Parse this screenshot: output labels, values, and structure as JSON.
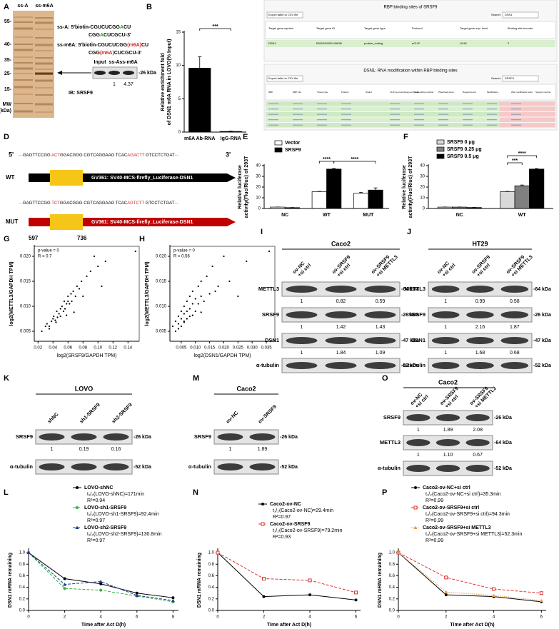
{
  "panel_labels": [
    "A",
    "B",
    "C",
    "D",
    "E",
    "F",
    "G",
    "H",
    "I",
    "J",
    "K",
    "L",
    "M",
    "N",
    "O",
    "P"
  ],
  "panel_a": {
    "lanes": [
      "ss-A",
      "ss-m6A"
    ],
    "mw": [
      "55-",
      "40-",
      "35-",
      "25-",
      "15-"
    ],
    "mw_title": "MW",
    "mw_unit": "(kDa)",
    "probes": [
      [
        [
          "ss-A: 5'biotin-CGUCUCGG",
          "A",
          "CU"
        ],
        [
          "CGG",
          "A",
          "CUCGCU-3'"
        ]
      ],
      [
        [
          "ss-m6A: 5'biotin-CGUCUCGG",
          "(m6A)",
          "CU"
        ],
        [
          "CGG",
          "(m6A)",
          "CUCGCU-3'"
        ]
      ]
    ],
    "blot": {
      "lanes": [
        "Input",
        "ss-A",
        "ss-m6A"
      ],
      "mw": "-26 kDa",
      "quant": [
        "1",
        "4.37"
      ],
      "antibody": "IB: SRSF9"
    }
  },
  "panel_c": {
    "title1": "RBP binding sites of SRSF9",
    "export": "Export table to CSV file",
    "search": "Search:",
    "query1": "DSN1",
    "headers1": [
      "Target gene symbol",
      "Target gene ID",
      "Target gene type",
      "Protocol",
      "Target gene exp. level",
      "Binding site records"
    ],
    "row1": [
      "DSN1",
      "ENSG00000149636",
      "protein_coding",
      "eCLIP",
      "LN18",
      "2"
    ],
    "title2": "DSN1: RNA modification within RBP binding sites",
    "query2": "SRSF9",
    "headers2": [
      "RBP",
      "RBP Info",
      "Tissue type",
      "Position",
      "Strand",
      "CLIP-seq technology and peak calling method",
      "Score",
      "Pheatmap score",
      "Repeat (level)",
      "Modification",
      "Web modification sites",
      "Support number"
    ]
  },
  "panel_d": {
    "prime5": "5'",
    "prime3": "3'",
    "wt_label": "WT",
    "mut_label": "MUT",
    "wt_seq": [
      "···GAGTTCCGG ",
      "ACT",
      "GGACGGG CGTCAGGAAG TCAC",
      "AGACTT",
      " GTCCTCTGAT···"
    ],
    "mut_seq": [
      "···GAGTTCCGG ",
      "TCT",
      "GGACGGG CGTCAGGAAG TCAC",
      "AGTCTT",
      " GTCCTCTGAT···"
    ],
    "construct_wt": "GV361:  SV40-MCS-firefly_Luciferase-DSN1",
    "construct_mut": "GV361:  SV40-MCS-firefly_Luciferase-DSN1",
    "positions": [
      "597",
      "736"
    ]
  },
  "blots": [
    {
      "title": "Caco2",
      "lanes": [
        [
          "ov-NC",
          "+si ctrl"
        ],
        [
          "ov-SRSF9",
          "+si ctrl"
        ],
        [
          "ov-SRSF9",
          "+si METTL3"
        ]
      ],
      "rows": [
        {
          "name": "METTL3",
          "mw": "-64 kDa",
          "quant": [
            "1",
            "0.82",
            "0.59"
          ]
        },
        {
          "name": "SRSF9",
          "mw": "-26 kDa",
          "quant": [
            "1",
            "1.42",
            "1.43"
          ]
        },
        {
          "name": "DSN1",
          "mw": "-47 kDa",
          "quant": [
            "1",
            "1.84",
            "1.09"
          ]
        },
        {
          "name": "α-tubulin",
          "mw": "-52 kDa"
        }
      ]
    },
    {
      "title": "HT29",
      "lanes": [
        [
          "ov-NC",
          "+si ctrl"
        ],
        [
          "ov-SRSF9",
          "+si ctrl"
        ],
        [
          "ov-SRSF9",
          "+si METTL3"
        ]
      ],
      "rows": [
        {
          "name": "METTL3",
          "mw": "-64 kDa",
          "quant": [
            "1",
            "0.99",
            "0.58"
          ]
        },
        {
          "name": "SRSF9",
          "mw": "-26 kDa",
          "quant": [
            "1",
            "2.16",
            "1.87"
          ]
        },
        {
          "name": "DSN1",
          "mw": "-47 kDa",
          "quant": [
            "1",
            "1.68",
            "0.68"
          ]
        },
        {
          "name": "α-tubulin",
          "mw": "-52 kDa"
        }
      ]
    },
    {
      "title": "LOVO",
      "lanes": [
        [
          "shNC"
        ],
        [
          "sh1-SRSF9"
        ],
        [
          "sh2-SRSF9"
        ]
      ],
      "rows": [
        {
          "name": "SRSF9",
          "mw": "-26 kDa",
          "quant": [
            "1",
            "0.19",
            "0.16"
          ]
        },
        {
          "name": "α-tubulin",
          "mw": "-52 kDa"
        }
      ]
    },
    {
      "title": "Caco2",
      "lanes": [
        [
          "ov-NC"
        ],
        [
          "ov-SRSF9"
        ]
      ],
      "rows": [
        {
          "name": "SRSF9",
          "mw": "-26 kDa",
          "quant": [
            "1",
            "1.89"
          ]
        },
        {
          "name": "α-tubulin",
          "mw": "-52 kDa"
        }
      ]
    },
    {
      "title": "Caco2",
      "lanes": [
        [
          "ov-NC",
          "+si ctrl"
        ],
        [
          "ov-SRSF9",
          "+si ctrl"
        ],
        [
          "ov-SRSF9",
          "+si METTL3"
        ]
      ],
      "rows": [
        {
          "name": "SRSF9",
          "mw": "-26 kDa",
          "quant": [
            "1",
            "1.89",
            "2.08"
          ]
        },
        {
          "name": "METTL3",
          "mw": "-64 kDa",
          "quant": [
            "1",
            "1.10",
            "0.67"
          ]
        },
        {
          "name": "α-tubulin",
          "mw": "-52 kDa"
        }
      ]
    }
  ],
  "chart_data": [
    {
      "type": "bar",
      "ylabel": [
        "Relative enrichment fold",
        "of DSN1 m6A RNA in LOVO(% Input)"
      ],
      "categories": [
        "m6A Ab-RNA",
        "IgG-RNA"
      ],
      "values": [
        9.6,
        0.1
      ],
      "errors": [
        1.7,
        0.05
      ],
      "color": "#000000",
      "ylim": [
        0,
        15
      ],
      "yticks": [
        0,
        5,
        10,
        15
      ],
      "annotations": [
        "***"
      ]
    },
    {
      "type": "bar",
      "ylabel": [
        "Relative luciferase",
        "activity(Fluc/Rluc) of 293T"
      ],
      "categories": [
        "NC",
        "WT",
        "MUT"
      ],
      "series": [
        {
          "name": "Vector",
          "color": "#ffffff",
          "values": [
            1.3,
            15.7,
            14.2
          ],
          "errors": [
            0.1,
            0.3,
            0.8
          ]
        },
        {
          "name": "SRSF9",
          "color": "#000000",
          "values": [
            0.8,
            36.8,
            17.2
          ],
          "errors": [
            0.1,
            0.5,
            2.0
          ]
        }
      ],
      "ylim": [
        0,
        40
      ],
      "yticks": [
        0,
        10,
        20,
        30,
        40
      ],
      "annotations": [
        "****",
        "****"
      ]
    },
    {
      "type": "bar",
      "ylabel": [
        "Relative luciferase",
        "activity(Fluc/Rluc) of 293T"
      ],
      "categories": [
        "NC",
        "WT"
      ],
      "series": [
        {
          "name": "SRSF9 0 μg",
          "color": "#d9d9d9",
          "values": [
            1.3,
            15.7
          ],
          "errors": [
            0.1,
            0.3
          ]
        },
        {
          "name": "SRSF9 0.25 μg",
          "color": "#808080",
          "values": [
            1.3,
            21.2
          ],
          "errors": [
            0.1,
            0.7
          ]
        },
        {
          "name": "SRSF9 0.5 μg",
          "color": "#000000",
          "values": [
            0.9,
            36.8
          ],
          "errors": [
            0.1,
            0.4
          ]
        }
      ],
      "ylim": [
        0,
        40
      ],
      "yticks": [
        0,
        10,
        20,
        30,
        40
      ],
      "annotations": [
        "***",
        "****"
      ]
    },
    {
      "type": "scatter",
      "xlabel": "log2(SRSF9/GAPDH TPM)",
      "ylabel": "log2(METTL3/GAPDH TPM)",
      "annotations": [
        "p-value = 0",
        "R = 0.7"
      ],
      "x": [
        0.025,
        0.03,
        0.032,
        0.035,
        0.038,
        0.04,
        0.041,
        0.043,
        0.045,
        0.046,
        0.048,
        0.05,
        0.05,
        0.052,
        0.054,
        0.055,
        0.056,
        0.058,
        0.06,
        0.06,
        0.062,
        0.064,
        0.065,
        0.067,
        0.07,
        0.072,
        0.075,
        0.078,
        0.08,
        0.085,
        0.09,
        0.095,
        0.1,
        0.105,
        0.11,
        0.035,
        0.044,
        0.058,
        0.068,
        0.15
      ],
      "values": [
        0.005,
        0.006,
        0.0065,
        0.006,
        0.007,
        0.0075,
        0.008,
        0.0072,
        0.009,
        0.0078,
        0.0085,
        0.0095,
        0.008,
        0.01,
        0.009,
        0.011,
        0.0095,
        0.0105,
        0.011,
        0.012,
        0.0105,
        0.0125,
        0.011,
        0.013,
        0.012,
        0.014,
        0.0135,
        0.015,
        0.012,
        0.016,
        0.017,
        0.02,
        0.018,
        0.014,
        0.019,
        0.0055,
        0.0068,
        0.0082,
        0.0088,
        0.021
      ],
      "color": "#000000",
      "xlim": [
        0.015,
        0.155
      ],
      "xticks": [
        0.02,
        0.04,
        0.06,
        0.08,
        {
          "value": 0.1,
          "label": "0.10"
        },
        0.12,
        0.14
      ],
      "ylim": [
        0.003,
        0.022
      ],
      "yticks": [
        0.005,
        {
          "value": 0.01,
          "label": "0.010"
        },
        0.015,
        {
          "value": 0.02,
          "label": "0.020"
        }
      ]
    },
    {
      "type": "scatter",
      "xlabel": "log2(DSN1/GAPDH TPM)",
      "ylabel": "log2(METTL3/GAPDH TPM)",
      "annotations": [
        "p-value = 0",
        "R = 0.56"
      ],
      "x": [
        0.002,
        0.003,
        0.003,
        0.004,
        0.004,
        0.005,
        0.005,
        0.005,
        0.006,
        0.006,
        0.006,
        0.007,
        0.007,
        0.007,
        0.008,
        0.008,
        0.008,
        0.009,
        0.009,
        0.01,
        0.01,
        0.011,
        0.011,
        0.012,
        0.012,
        0.013,
        0.014,
        0.015,
        0.016,
        0.017,
        0.018,
        0.02,
        0.022,
        0.025,
        0.028,
        0.004,
        0.006,
        0.009,
        0.012,
        0.036
      ],
      "values": [
        0.006,
        0.005,
        0.007,
        0.0065,
        0.008,
        0.0075,
        0.009,
        0.006,
        0.0085,
        0.01,
        0.007,
        0.011,
        0.009,
        0.0075,
        0.012,
        0.0095,
        0.008,
        0.0105,
        0.013,
        0.0115,
        0.009,
        0.014,
        0.0105,
        0.012,
        0.015,
        0.011,
        0.016,
        0.0125,
        0.018,
        0.013,
        0.014,
        0.02,
        0.015,
        0.012,
        0.019,
        0.0055,
        0.0068,
        0.0082,
        0.0088,
        0.021
      ],
      "color": "#000000",
      "xlim": [
        0.001,
        0.038
      ],
      "xticks": [
        0.005,
        {
          "value": 0.01,
          "label": "0.010"
        },
        0.015,
        {
          "value": 0.02,
          "label": "0.020"
        },
        0.025,
        {
          "value": 0.03,
          "label": "0.030"
        },
        0.035
      ],
      "ylim": [
        0.003,
        0.022
      ],
      "yticks": [
        0.005,
        {
          "value": 0.01,
          "label": "0.010"
        },
        0.015,
        {
          "value": 0.02,
          "label": "0.020"
        }
      ]
    },
    {
      "type": "line",
      "xlabel": "Time after Act D(h)",
      "ylabel": "DSN1 mRNA remaining",
      "x": [
        0,
        2,
        4,
        6,
        8
      ],
      "series": [
        {
          "name": "LOVO-shNC",
          "color": "#000000",
          "dash": "solid",
          "marker": "circle",
          "values": [
            1.0,
            0.55,
            0.46,
            0.3,
            0.22
          ],
          "stats": [
            "t₁/₂(LOVO-shNC)=171min",
            "R²=0.94"
          ]
        },
        {
          "name": "LOVO-sh1-SRSF9",
          "color": "#3cb043",
          "dash": "dash",
          "marker": "circle",
          "values": [
            1.0,
            0.38,
            0.35,
            0.25,
            0.15
          ],
          "stats": [
            "t₁/₂(LOVO-sh1-SRSF9)=92.4min",
            "R²=0.97"
          ]
        },
        {
          "name": "LOVO-sh2-SRSF9",
          "color": "#1f3a93",
          "dash": "dash",
          "marker": "triangle",
          "values": [
            1.0,
            0.45,
            0.5,
            0.26,
            0.17
          ],
          "stats": [
            "t₁/₂(LOVO-sh2-SRSF9)=130.8min",
            "R²=0.97"
          ]
        }
      ],
      "xlim": [
        0,
        8.3
      ],
      "xticks": [
        0,
        2,
        4,
        6,
        8
      ],
      "ylim": [
        0,
        1.05
      ],
      "yticks": [
        {
          "value": 0,
          "label": "0.0"
        },
        0.2,
        0.4,
        0.6,
        0.8,
        {
          "value": 1,
          "label": "1.0"
        }
      ]
    },
    {
      "type": "line",
      "xlabel": "Time after Act D(h)",
      "ylabel": "DSN1 mRNA remaining",
      "x": [
        0,
        2,
        4,
        6
      ],
      "series": [
        {
          "name": "Caco2-ov-NC",
          "color": "#000000",
          "dash": "solid",
          "marker": "circle",
          "values": [
            1.0,
            0.24,
            0.27,
            0.18
          ],
          "stats": [
            "t₁/₂(Caco2-ov-NC)=29.4min",
            "R²=0.97"
          ]
        },
        {
          "name": "Caco2-ov-SRSF9",
          "color": "#e03030",
          "dash": "dash",
          "marker": "square-open",
          "values": [
            1.0,
            0.55,
            0.52,
            0.31
          ],
          "stats": [
            "t₁/₂(Caco2-ov-SRSF9)=79.2min",
            "R²=0.93"
          ]
        }
      ],
      "xlim": [
        0,
        6.2
      ],
      "xticks": [
        0,
        2,
        4,
        6
      ],
      "ylim": [
        0,
        1.05
      ],
      "yticks": [
        {
          "value": 0,
          "label": "0.0"
        },
        0.2,
        0.4,
        0.6,
        0.8,
        {
          "value": 1,
          "label": "1.0"
        }
      ]
    },
    {
      "type": "line",
      "xlabel": "Time after Act D(h)",
      "ylabel": "DSN1 mRNA remaining",
      "x": [
        0,
        2,
        4,
        6
      ],
      "series": [
        {
          "name": "Caco2-ov-NC+si ctrl",
          "color": "#000000",
          "dash": "solid",
          "marker": "circle",
          "values": [
            1.0,
            0.27,
            0.24,
            0.15
          ],
          "stats": [
            "t₁/₂(Caco2-ov-NC+si ctrl)=35.3min",
            "R²=0.99"
          ]
        },
        {
          "name": "Caco2-ov-SRSF9+si ctrl",
          "color": "#e03030",
          "dash": "dash",
          "marker": "square-open",
          "values": [
            1.0,
            0.57,
            0.37,
            0.3
          ],
          "stats": [
            "t₁/₂(Caco2-ov-SRSF9+si ctrl)=94.3min",
            "R²=0.99"
          ]
        },
        {
          "name": "Caco2-ov-SRSF9+si METTL3",
          "color": "#e8a040",
          "dash": "dot",
          "marker": "triangle",
          "values": [
            1.0,
            0.32,
            0.26,
            0.17
          ],
          "stats": [
            "t₁/₂(Caco2-ov-SRSF9+si METTL3)=52.3min",
            "R²=0.99"
          ]
        }
      ],
      "xlim": [
        0,
        6.2
      ],
      "xticks": [
        0,
        2,
        4,
        6
      ],
      "ylim": [
        0,
        1.05
      ],
      "yticks": [
        {
          "value": 0,
          "label": "0.0"
        },
        0.2,
        0.4,
        0.6,
        0.8,
        {
          "value": 1,
          "label": "1.0"
        }
      ]
    }
  ]
}
